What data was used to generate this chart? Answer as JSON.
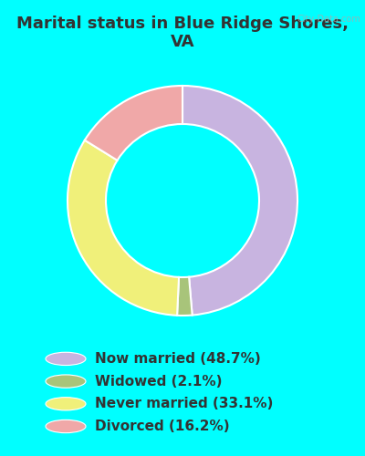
{
  "title": "Marital status in Blue Ridge Shores,\nVA",
  "slices": [
    48.7,
    2.1,
    33.1,
    16.2
  ],
  "labels": [
    "Now married (48.7%)",
    "Widowed (2.1%)",
    "Never married (33.1%)",
    "Divorced (16.2%)"
  ],
  "colors": [
    "#c8b4e0",
    "#a8c47a",
    "#f0f07a",
    "#f0a8a8"
  ],
  "background_color": "#00ffff",
  "chart_bg_color": "#d0ead8",
  "text_color": "#333333",
  "title_fontsize": 13,
  "legend_fontsize": 11,
  "watermark": "City-Data.com"
}
